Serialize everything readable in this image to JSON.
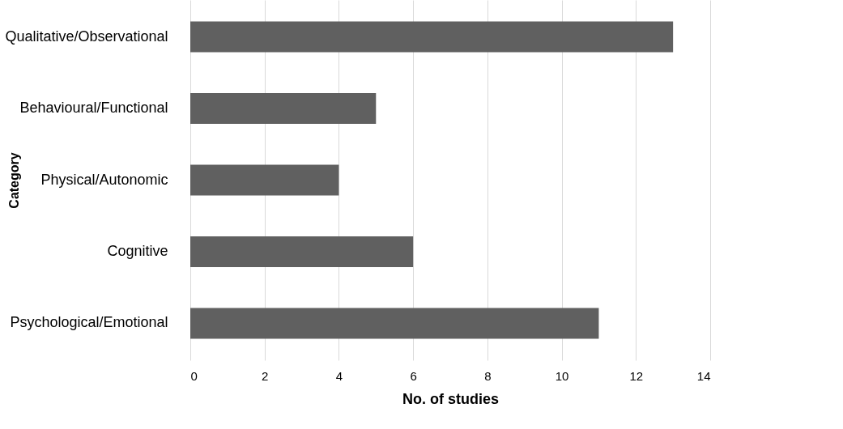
{
  "chart_data": {
    "type": "bar",
    "orientation": "horizontal",
    "xlabel": "No. of studies",
    "ylabel": "Category",
    "categories": [
      "Qualitative/Observational",
      "Behavioural/Functional",
      "Physical/Autonomic",
      "Cognitive",
      "Psychological/Emotional"
    ],
    "values": [
      13,
      5,
      4,
      6,
      11
    ],
    "color": "#606060",
    "xlim": [
      0,
      14
    ],
    "xticks": [
      0,
      2,
      4,
      6,
      8,
      10,
      12,
      14
    ],
    "grid": "x"
  }
}
